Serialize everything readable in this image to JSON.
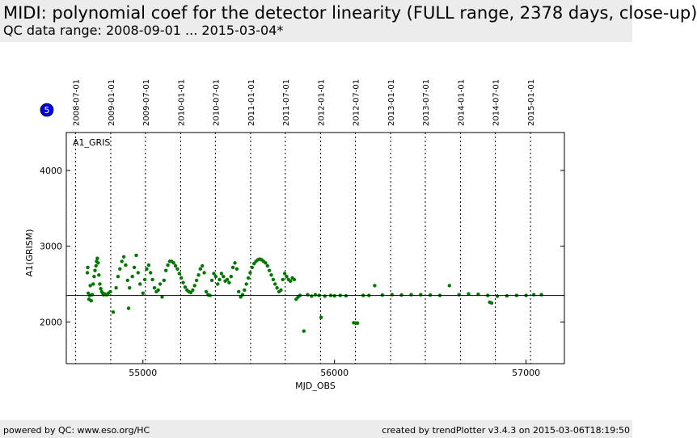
{
  "header": {
    "title": "MIDI: polynomial coef for the detector linearity (FULL range, 2378 days, close-up)",
    "subtitle": "QC data range: 2008-09-01 ... 2015-03-04*"
  },
  "badge": {
    "label": "5",
    "color": "#0000dd"
  },
  "footer": {
    "left": "powered by QC: www.eso.org/HC",
    "right": "created by trendPlotter v3.4.3 on 2015-03-06T18:19:50"
  },
  "chart_data": {
    "type": "scatter",
    "panel_label": "A1_GRIS",
    "xlabel": "MJD_OBS",
    "ylabel": "A1(GRISM)",
    "xlim": [
      54600,
      57200
    ],
    "ylim": [
      1450,
      4500
    ],
    "xticks": [
      55000,
      56000,
      57000
    ],
    "yticks": [
      2000,
      3000,
      4000
    ],
    "reference_line": 2350,
    "marker_color": "#007700",
    "date_ticks": [
      {
        "label": "2008-07-01",
        "mjd": 54648
      },
      {
        "label": "2009-01-01",
        "mjd": 54832
      },
      {
        "label": "2009-07-01",
        "mjd": 55013
      },
      {
        "label": "2010-01-01",
        "mjd": 55197
      },
      {
        "label": "2010-07-01",
        "mjd": 55378
      },
      {
        "label": "2011-01-01",
        "mjd": 55562
      },
      {
        "label": "2011-07-01",
        "mjd": 55743
      },
      {
        "label": "2012-01-01",
        "mjd": 55927
      },
      {
        "label": "2012-07-01",
        "mjd": 56109
      },
      {
        "label": "2013-01-01",
        "mjd": 56293
      },
      {
        "label": "2013-07-01",
        "mjd": 56474
      },
      {
        "label": "2014-01-01",
        "mjd": 56658
      },
      {
        "label": "2014-07-01",
        "mjd": 56839
      },
      {
        "label": "2015-01-01",
        "mjd": 57023
      }
    ],
    "series": [
      {
        "points": [
          [
            54710,
            2650
          ],
          [
            54712,
            2720
          ],
          [
            54715,
            2380
          ],
          [
            54718,
            2300
          ],
          [
            54722,
            2350
          ],
          [
            54725,
            2480
          ],
          [
            54730,
            2280
          ],
          [
            54735,
            2360
          ],
          [
            54740,
            2500
          ],
          [
            54745,
            2600
          ],
          [
            54750,
            2680
          ],
          [
            54755,
            2740
          ],
          [
            54758,
            2800
          ],
          [
            54762,
            2840
          ],
          [
            54766,
            2780
          ],
          [
            54770,
            2620
          ],
          [
            54775,
            2500
          ],
          [
            54780,
            2440
          ],
          [
            54785,
            2400
          ],
          [
            54790,
            2380
          ],
          [
            54795,
            2360
          ],
          [
            54800,
            2370
          ],
          [
            54810,
            2360
          ],
          [
            54820,
            2380
          ],
          [
            54830,
            2400
          ],
          [
            54845,
            2130
          ],
          [
            54860,
            2450
          ],
          [
            54870,
            2600
          ],
          [
            54880,
            2700
          ],
          [
            54890,
            2800
          ],
          [
            54900,
            2860
          ],
          [
            54910,
            2750
          ],
          [
            54920,
            2550
          ],
          [
            54925,
            2180
          ],
          [
            54930,
            2450
          ],
          [
            54945,
            2600
          ],
          [
            54955,
            2720
          ],
          [
            54965,
            2880
          ],
          [
            54975,
            2650
          ],
          [
            54985,
            2500
          ],
          [
            55000,
            2380
          ],
          [
            55010,
            2560
          ],
          [
            55020,
            2700
          ],
          [
            55030,
            2750
          ],
          [
            55040,
            2650
          ],
          [
            55050,
            2560
          ],
          [
            55060,
            2450
          ],
          [
            55070,
            2400
          ],
          [
            55080,
            2420
          ],
          [
            55090,
            2500
          ],
          [
            55100,
            2330
          ],
          [
            55110,
            2550
          ],
          [
            55120,
            2680
          ],
          [
            55130,
            2750
          ],
          [
            55140,
            2800
          ],
          [
            55150,
            2800
          ],
          [
            55160,
            2780
          ],
          [
            55170,
            2740
          ],
          [
            55180,
            2700
          ],
          [
            55190,
            2640
          ],
          [
            55200,
            2580
          ],
          [
            55210,
            2520
          ],
          [
            55220,
            2460
          ],
          [
            55230,
            2420
          ],
          [
            55240,
            2400
          ],
          [
            55250,
            2390
          ],
          [
            55260,
            2420
          ],
          [
            55270,
            2480
          ],
          [
            55280,
            2550
          ],
          [
            55290,
            2620
          ],
          [
            55300,
            2700
          ],
          [
            55310,
            2740
          ],
          [
            55320,
            2650
          ],
          [
            55330,
            2400
          ],
          [
            55340,
            2360
          ],
          [
            55350,
            2350
          ],
          [
            55360,
            2550
          ],
          [
            55370,
            2640
          ],
          [
            55380,
            2600
          ],
          [
            55390,
            2500
          ],
          [
            55400,
            2560
          ],
          [
            55410,
            2640
          ],
          [
            55420,
            2600
          ],
          [
            55430,
            2540
          ],
          [
            55440,
            2560
          ],
          [
            55450,
            2520
          ],
          [
            55460,
            2600
          ],
          [
            55470,
            2720
          ],
          [
            55480,
            2780
          ],
          [
            55490,
            2700
          ],
          [
            55500,
            2400
          ],
          [
            55510,
            2330
          ],
          [
            55520,
            2360
          ],
          [
            55530,
            2420
          ],
          [
            55540,
            2500
          ],
          [
            55550,
            2580
          ],
          [
            55560,
            2650
          ],
          [
            55570,
            2720
          ],
          [
            55580,
            2770
          ],
          [
            55590,
            2800
          ],
          [
            55600,
            2820
          ],
          [
            55610,
            2830
          ],
          [
            55620,
            2820
          ],
          [
            55630,
            2800
          ],
          [
            55640,
            2780
          ],
          [
            55650,
            2740
          ],
          [
            55660,
            2680
          ],
          [
            55670,
            2620
          ],
          [
            55680,
            2560
          ],
          [
            55690,
            2500
          ],
          [
            55700,
            2450
          ],
          [
            55710,
            2400
          ],
          [
            55720,
            2420
          ],
          [
            55730,
            2560
          ],
          [
            55740,
            2640
          ],
          [
            55750,
            2600
          ],
          [
            55760,
            2560
          ],
          [
            55770,
            2540
          ],
          [
            55780,
            2580
          ],
          [
            55790,
            2560
          ],
          [
            55800,
            2300
          ],
          [
            55810,
            2330
          ],
          [
            55820,
            2350
          ],
          [
            55840,
            1880
          ],
          [
            55860,
            2360
          ],
          [
            55880,
            2340
          ],
          [
            55900,
            2360
          ],
          [
            55920,
            2350
          ],
          [
            55930,
            2060
          ],
          [
            55950,
            2340
          ],
          [
            55980,
            2350
          ],
          [
            56000,
            2345
          ],
          [
            56030,
            2350
          ],
          [
            56060,
            2345
          ],
          [
            56100,
            1990
          ],
          [
            56110,
            1985
          ],
          [
            56120,
            1985
          ],
          [
            56150,
            2350
          ],
          [
            56180,
            2350
          ],
          [
            56210,
            2480
          ],
          [
            56250,
            2355
          ],
          [
            56300,
            2360
          ],
          [
            56350,
            2355
          ],
          [
            56400,
            2360
          ],
          [
            56450,
            2360
          ],
          [
            56500,
            2355
          ],
          [
            56550,
            2350
          ],
          [
            56600,
            2480
          ],
          [
            56650,
            2360
          ],
          [
            56700,
            2370
          ],
          [
            56750,
            2365
          ],
          [
            56800,
            2350
          ],
          [
            56810,
            2260
          ],
          [
            56820,
            2250
          ],
          [
            56850,
            2340
          ],
          [
            56900,
            2345
          ],
          [
            56950,
            2350
          ],
          [
            57000,
            2350
          ],
          [
            57040,
            2360
          ],
          [
            57080,
            2360
          ]
        ]
      }
    ]
  }
}
